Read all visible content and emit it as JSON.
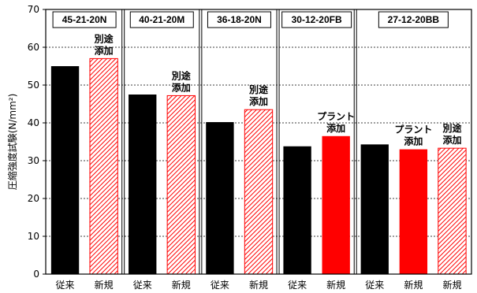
{
  "chart_data": {
    "type": "bar",
    "ylabel": "圧縮強度試験(N/mm²)",
    "ylim": [
      0,
      70
    ],
    "yticks": [
      0,
      10,
      20,
      30,
      40,
      50,
      60,
      70
    ],
    "grid": "horizontal dashed",
    "colors": {
      "conventional": "#000000",
      "plant": "#ff0000",
      "separate": "#ff0000"
    },
    "groups": [
      {
        "label": "45-21-20N",
        "bars": [
          {
            "category": "従来",
            "value": 55,
            "fill": "solid-black",
            "annotation": []
          },
          {
            "category": "新規",
            "value": 57,
            "fill": "hatched-red",
            "annotation": [
              "別途",
              "添加"
            ]
          }
        ]
      },
      {
        "label": "40-21-20M",
        "bars": [
          {
            "category": "従来",
            "value": 47.5,
            "fill": "solid-black",
            "annotation": []
          },
          {
            "category": "新規",
            "value": 47.2,
            "fill": "hatched-red",
            "annotation": [
              "別途",
              "添加"
            ]
          }
        ]
      },
      {
        "label": "36-18-20N",
        "bars": [
          {
            "category": "従来",
            "value": 40.2,
            "fill": "solid-black",
            "annotation": []
          },
          {
            "category": "新規",
            "value": 43.5,
            "fill": "hatched-red",
            "annotation": [
              "別途",
              "添加"
            ]
          }
        ]
      },
      {
        "label": "30-12-20FB",
        "bars": [
          {
            "category": "従来",
            "value": 33.8,
            "fill": "solid-black",
            "annotation": []
          },
          {
            "category": "新規",
            "value": 36.5,
            "fill": "solid-red",
            "annotation": [
              "プラント",
              "添加"
            ]
          }
        ]
      },
      {
        "label": "27-12-20BB",
        "bars": [
          {
            "category": "従来",
            "value": 34.3,
            "fill": "solid-black",
            "annotation": []
          },
          {
            "category": "新規",
            "value": 33,
            "fill": "solid-red",
            "annotation": [
              "プラント",
              "添加"
            ]
          },
          {
            "category": "新規",
            "value": 33.3,
            "fill": "hatched-red",
            "annotation": [
              "別途",
              "添加"
            ]
          }
        ]
      }
    ]
  }
}
